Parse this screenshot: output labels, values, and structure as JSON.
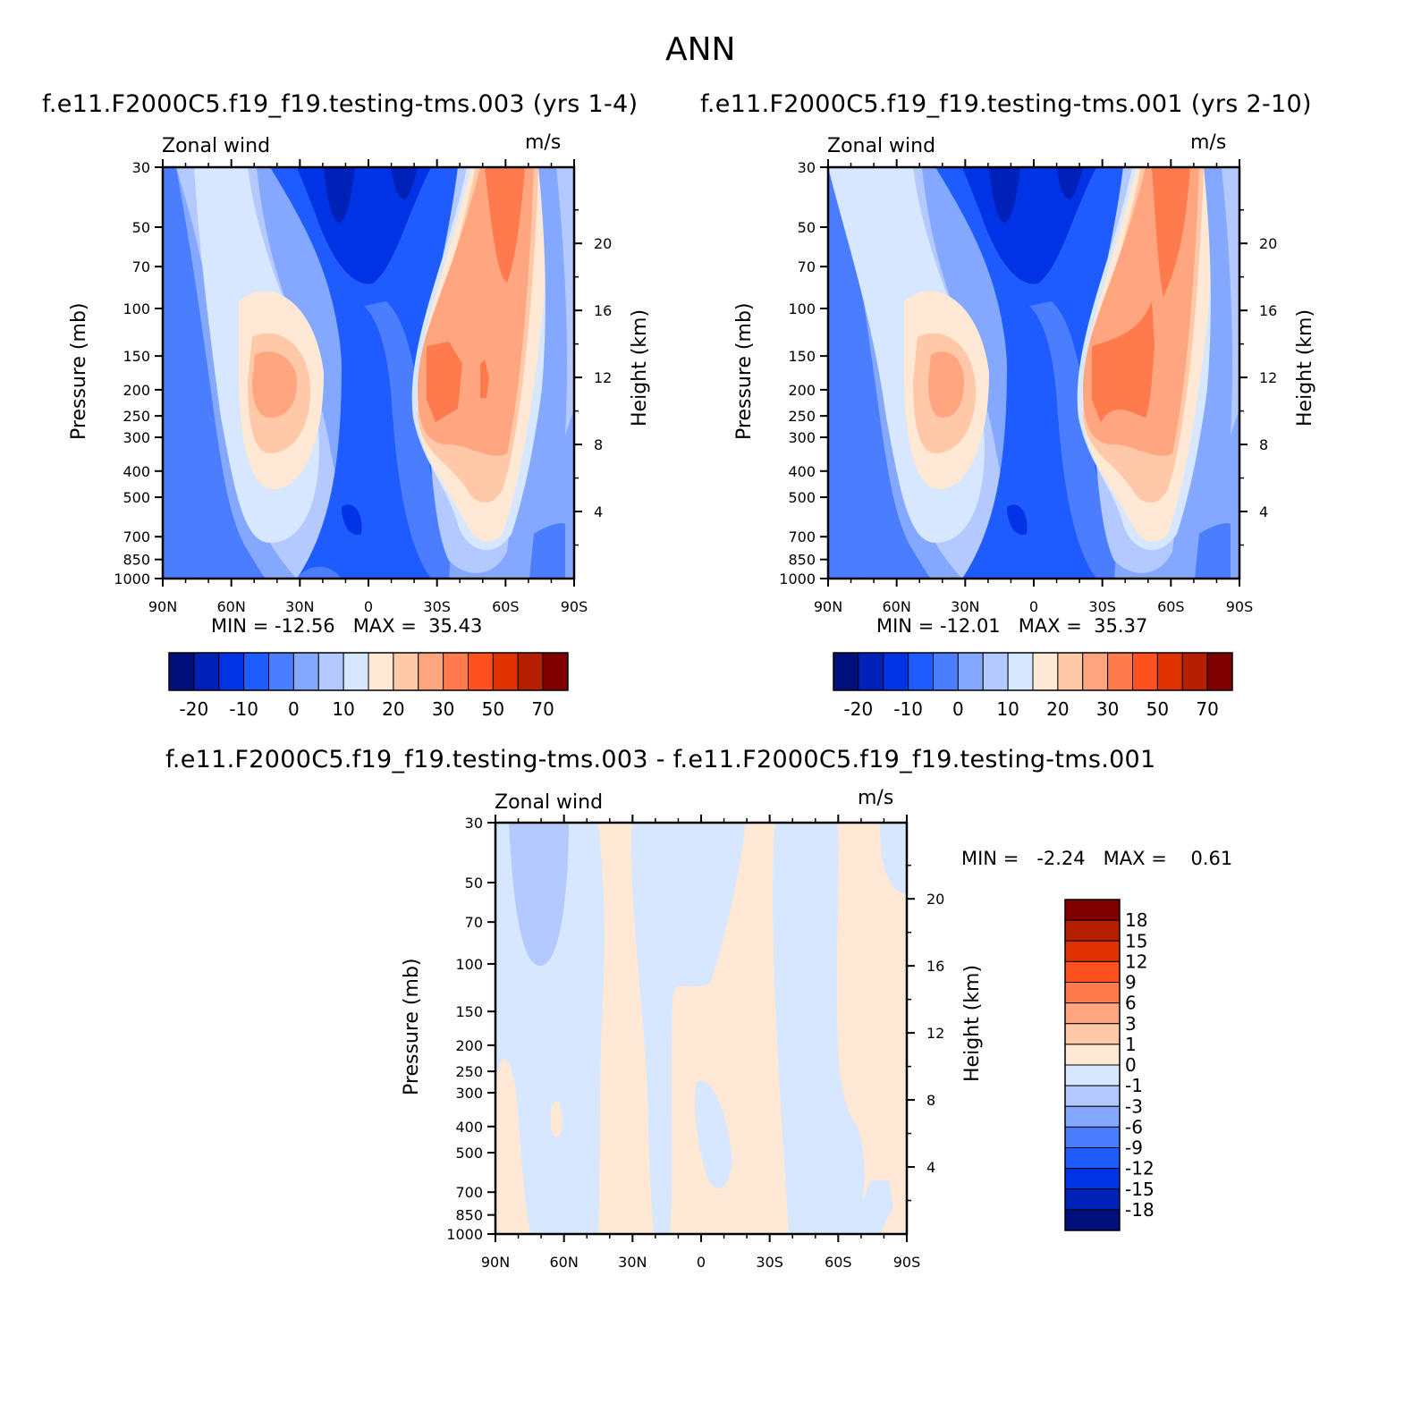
{
  "main_title": "ANN",
  "panels": [
    {
      "title": "f.e11.F2000C5.f19_f19.testing-tms.003 (yrs 1-4)",
      "left_string": "Zonal wind",
      "right_string": "m/s",
      "stats": "MIN = -12.56   MAX =  35.43",
      "ylabel": "Pressure (mb)",
      "y2label": "Height (km)"
    },
    {
      "title": "f.e11.F2000C5.f19_f19.testing-tms.001 (yrs 2-10)",
      "left_string": "Zonal wind",
      "right_string": "m/s",
      "stats": "MIN = -12.01   MAX =  35.37",
      "ylabel": "Pressure (mb)",
      "y2label": "Height (km)"
    },
    {
      "title": "f.e11.F2000C5.f19_f19.testing-tms.003 - f.e11.F2000C5.f19_f19.testing-tms.001",
      "left_string": "Zonal wind",
      "right_string": "m/s",
      "stats": "MIN =   -2.24   MAX =    0.61",
      "ylabel": "Pressure (mb)",
      "y2label": "Height (km)"
    }
  ],
  "axes": {
    "x_ticks": [
      "90N",
      "60N",
      "30N",
      "0",
      "30S",
      "60S",
      "90S"
    ],
    "p_ticks": [
      "30",
      "50",
      "70",
      "100",
      "150",
      "200",
      "250",
      "300",
      "400",
      "500",
      "700",
      "850",
      "1000"
    ],
    "z_ticks": [
      "20",
      "16",
      "12",
      "8",
      "4"
    ]
  },
  "colorbar_main": {
    "labels": [
      "-20",
      "-10",
      "0",
      "10",
      "20",
      "30",
      "50",
      "70"
    ],
    "colors": [
      "#000f7a",
      "#0021b8",
      "#0033e6",
      "#1f5cff",
      "#4a7dff",
      "#85a8ff",
      "#b3c9ff",
      "#d6e7ff",
      "#ffe8d4",
      "#ffc8a8",
      "#ffa57f",
      "#ff7b4d",
      "#ff5020",
      "#e03200",
      "#b51f00",
      "#800000"
    ]
  },
  "colorbar_diff": {
    "labels": [
      "18",
      "15",
      "12",
      "9",
      "6",
      "3",
      "1",
      "0",
      "-1",
      "-3",
      "-6",
      "-9",
      "-12",
      "-15",
      "-18"
    ],
    "colors": [
      "#800000",
      "#b51f00",
      "#e03200",
      "#ff5020",
      "#ff7b4d",
      "#ffa57f",
      "#ffc8a8",
      "#ffe8d4",
      "#d6e7ff",
      "#b3c9ff",
      "#85a8ff",
      "#4a7dff",
      "#1f5cff",
      "#0033e6",
      "#0021b8",
      "#000f7a"
    ]
  },
  "chart_data": [
    {
      "type": "heatmap",
      "title": "f.e11.F2000C5.f19_f19.testing-tms.003 (yrs 1-4)",
      "variable": "Zonal wind",
      "units": "m/s",
      "xlabel": "",
      "ylabel": "Pressure (mb)",
      "y2label": "Height (km)",
      "x_range": [
        "90N",
        "90S"
      ],
      "ylim": [
        1000,
        30
      ],
      "y_scale": "log",
      "min": -12.56,
      "max": 35.43,
      "contour_levels": [
        -20,
        -15,
        -10,
        -5,
        0,
        5,
        10,
        15,
        20,
        25,
        30,
        40,
        50,
        60,
        70
      ]
    },
    {
      "type": "heatmap",
      "title": "f.e11.F2000C5.f19_f19.testing-tms.001 (yrs 2-10)",
      "variable": "Zonal wind",
      "units": "m/s",
      "xlabel": "",
      "ylabel": "Pressure (mb)",
      "y2label": "Height (km)",
      "x_range": [
        "90N",
        "90S"
      ],
      "ylim": [
        1000,
        30
      ],
      "y_scale": "log",
      "min": -12.01,
      "max": 35.37,
      "contour_levels": [
        -20,
        -15,
        -10,
        -5,
        0,
        5,
        10,
        15,
        20,
        25,
        30,
        40,
        50,
        60,
        70
      ]
    },
    {
      "type": "heatmap",
      "title": "f.e11.F2000C5.f19_f19.testing-tms.003 - f.e11.F2000C5.f19_f19.testing-tms.001",
      "variable": "Zonal wind",
      "units": "m/s",
      "xlabel": "",
      "ylabel": "Pressure (mb)",
      "y2label": "Height (km)",
      "x_range": [
        "90N",
        "90S"
      ],
      "ylim": [
        1000,
        30
      ],
      "y_scale": "log",
      "min": -2.24,
      "max": 0.61,
      "contour_levels": [
        -18,
        -15,
        -12,
        -9,
        -6,
        -3,
        -1,
        0,
        1,
        3,
        6,
        9,
        12,
        15,
        18
      ]
    }
  ]
}
